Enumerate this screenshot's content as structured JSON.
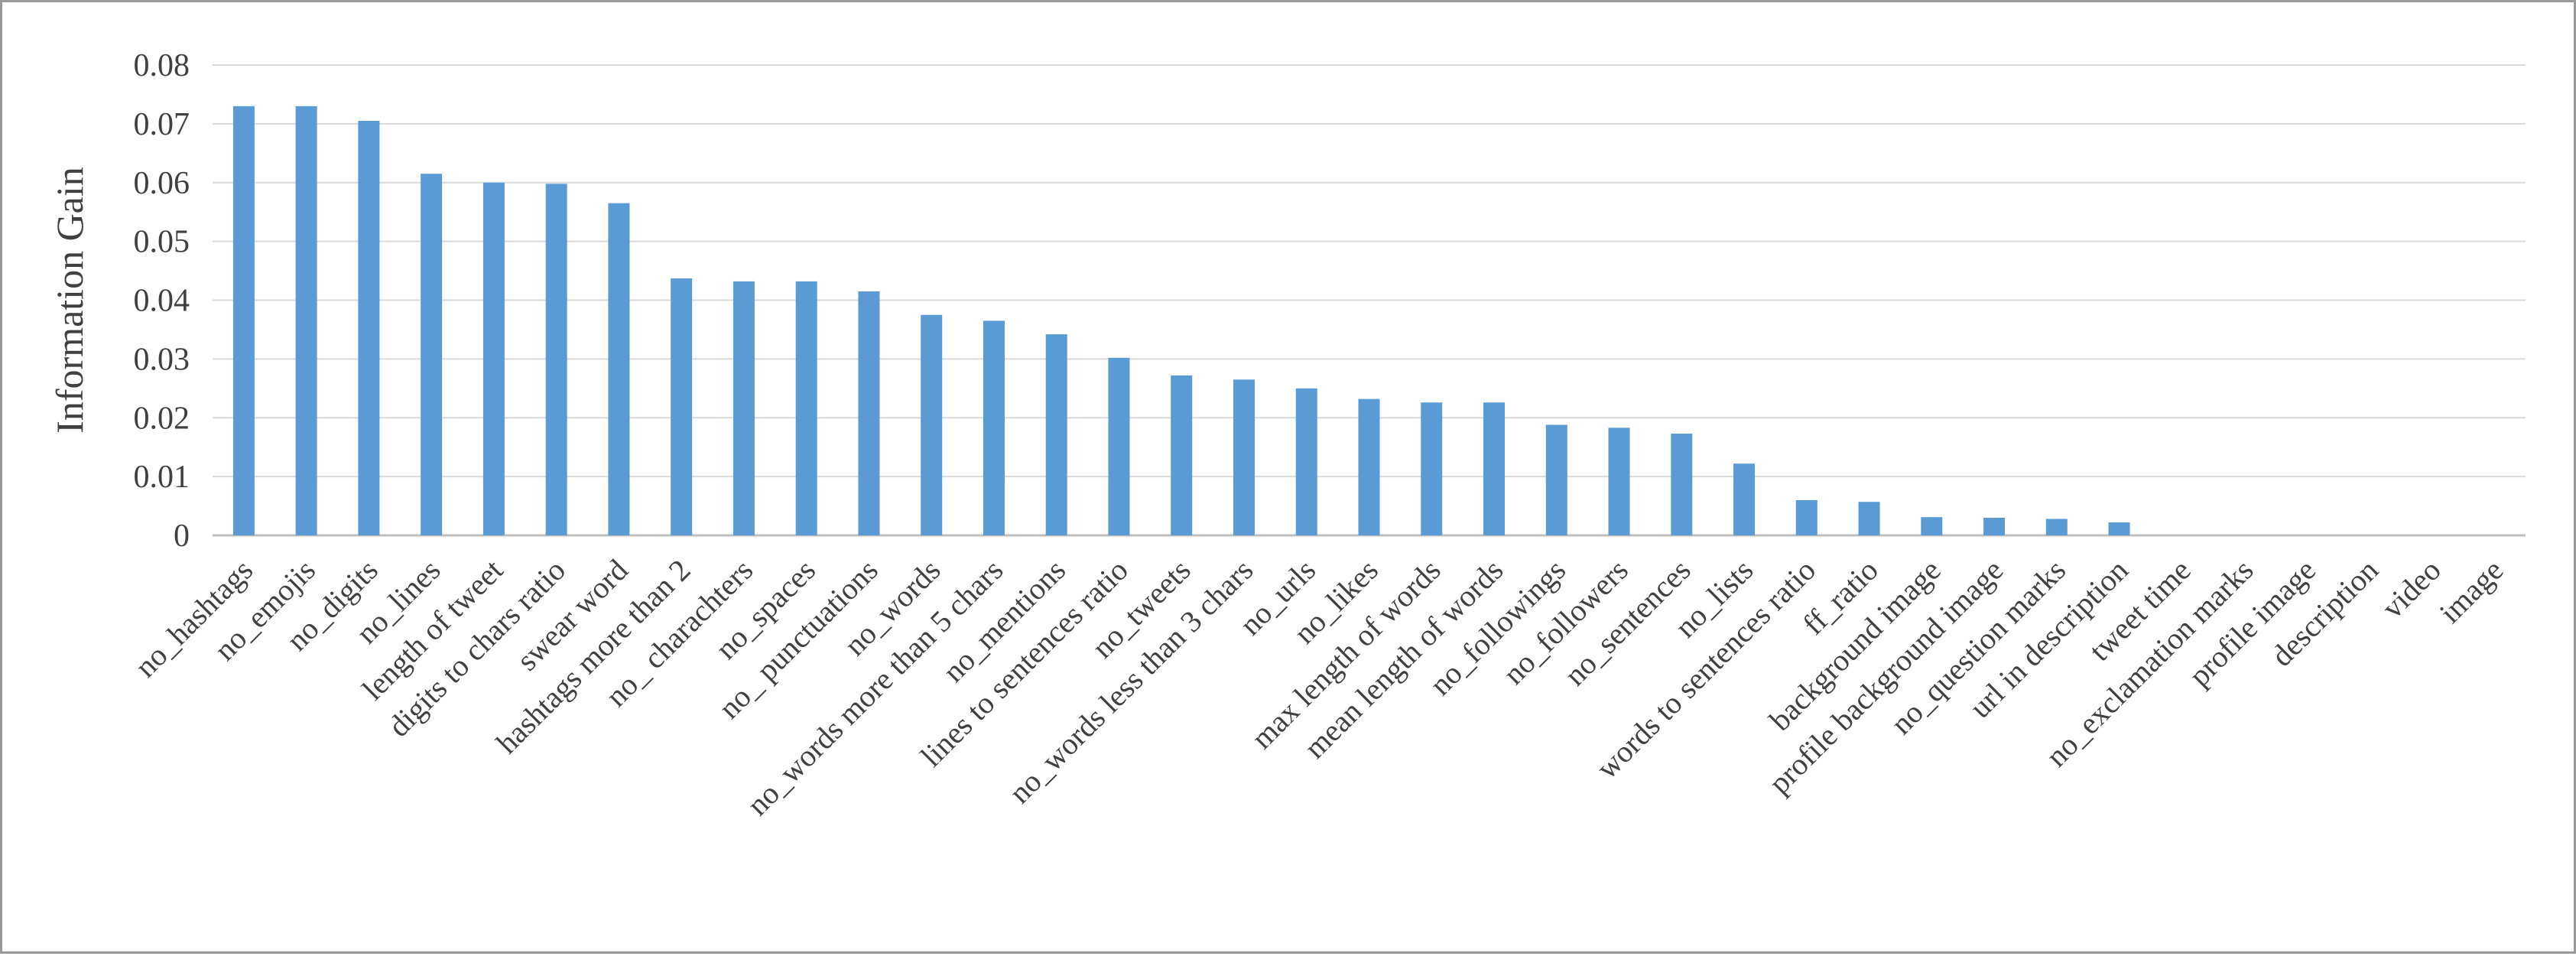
{
  "chart_data": {
    "type": "bar",
    "title": "",
    "xlabel": "",
    "ylabel": "Information Gain",
    "ylim": [
      0,
      0.08
    ],
    "yticks": [
      "0",
      "0.01",
      "0.02",
      "0.03",
      "0.04",
      "0.05",
      "0.06",
      "0.07",
      "0.08"
    ],
    "grid": true,
    "legend": "none",
    "bar_color": "#5b9bd5",
    "categories": [
      "no_hashtags",
      "no_emojis",
      "no_digits",
      "no_lines",
      "length of tweet",
      "digits to chars ratio",
      "swear word",
      "hashtags more than 2",
      "no_ charachters",
      "no_spaces",
      "no_ punctuations",
      "no_words",
      "no_words more than 5 chars",
      "no_mentions",
      "lines  to sentences ratio",
      "no_tweets",
      "no_words less than 3 chars",
      "no_urls",
      "no_likes",
      "max length of words",
      "mean length of words",
      "no_followings",
      "no_followers",
      "no_sentences",
      "no_lists",
      "words to sentences ratio",
      "ff_ratio",
      "background image",
      "profile background image",
      "no_question marks",
      "url in description",
      "tweet time",
      "no_exclamation marks",
      "profile image",
      "description",
      "video",
      "image"
    ],
    "values": [
      0.073,
      0.073,
      0.0705,
      0.0615,
      0.06,
      0.0598,
      0.0565,
      0.0437,
      0.0432,
      0.0432,
      0.0415,
      0.0375,
      0.0365,
      0.0342,
      0.0302,
      0.0272,
      0.0265,
      0.025,
      0.0232,
      0.0226,
      0.0226,
      0.0188,
      0.0183,
      0.0173,
      0.0122,
      0.006,
      0.0057,
      0.0031,
      0.003,
      0.0028,
      0.0022,
      0,
      0,
      0,
      0,
      0,
      0
    ]
  }
}
